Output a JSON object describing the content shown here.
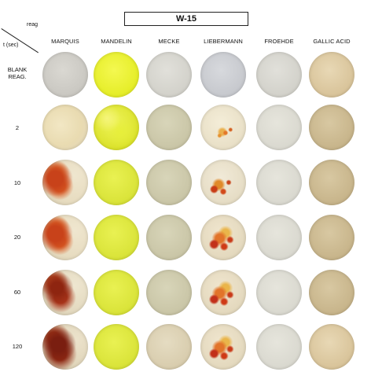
{
  "title": "W-15",
  "corner": {
    "top_label": "reag",
    "side_label": "t (sec)"
  },
  "reagents": [
    "MARQUIS",
    "MANDELIN",
    "MECKE",
    "LIEBERMANN",
    "FROEHDE",
    "GALLIC ACID"
  ],
  "times": [
    "BLANK REAG.",
    "2",
    "10",
    "20",
    "60",
    "120"
  ],
  "wells": [
    [
      "blank-gray",
      "yellow-bright",
      "pale-gray",
      "gray",
      "pale-gray",
      "tan-light"
    ],
    [
      "cream",
      "yellow-mottled",
      "olive-pale",
      "cream-orange-spots",
      "pale-cream",
      "tan"
    ],
    [
      "orange-red-blotch",
      "yellow-lime",
      "olive-pale",
      "red-spots",
      "pale-cream",
      "tan"
    ],
    [
      "orange-red-blotch",
      "yellow-lime",
      "olive-pale",
      "red-spots-heavy",
      "pale-cream",
      "tan"
    ],
    [
      "red-brown-blotch",
      "yellow-lime",
      "olive-pale",
      "red-spots-heavy",
      "pale-cream",
      "tan"
    ],
    [
      "dark-red-blotch",
      "yellow-lime",
      "beige",
      "red-spots-heavy",
      "pale-cream",
      "tan-light"
    ]
  ]
}
